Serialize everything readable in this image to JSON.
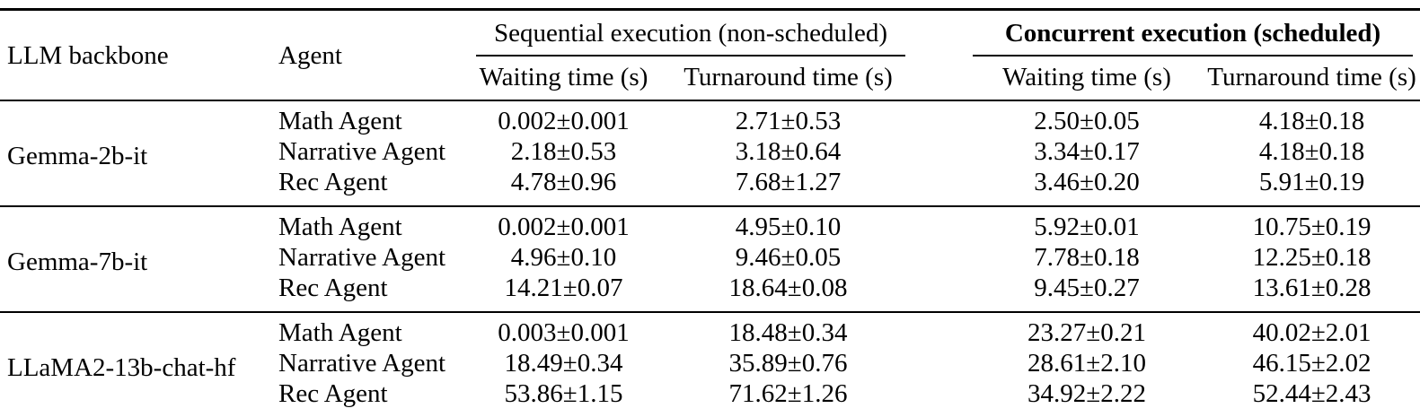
{
  "colors": {
    "background": "#ffffff",
    "text": "#000000",
    "rule": "#000000"
  },
  "table": {
    "headers": {
      "llm_backbone": "LLM backbone",
      "agent": "Agent",
      "sequential_group": "Sequential execution (non-scheduled)",
      "concurrent_group": "Concurrent execution (scheduled)"
    },
    "sub_columns": [
      "Waiting time (s)",
      "Turnaround time (s)"
    ],
    "groups": [
      {
        "backbone": "Gemma-2b-it",
        "rows": [
          {
            "agent": "Math Agent",
            "seq_wait": "0.002±0.001",
            "seq_turn": "2.71±0.53",
            "conc_wait": "2.50±0.05",
            "conc_turn": "4.18±0.18"
          },
          {
            "agent": "Narrative Agent",
            "seq_wait": "2.18±0.53",
            "seq_turn": "3.18±0.64",
            "conc_wait": "3.34±0.17",
            "conc_turn": "4.18±0.18"
          },
          {
            "agent": "Rec Agent",
            "seq_wait": "4.78±0.96",
            "seq_turn": "7.68±1.27",
            "conc_wait": "3.46±0.20",
            "conc_turn": "5.91±0.19"
          }
        ]
      },
      {
        "backbone": "Gemma-7b-it",
        "rows": [
          {
            "agent": "Math Agent",
            "seq_wait": "0.002±0.001",
            "seq_turn": "4.95±0.10",
            "conc_wait": "5.92±0.01",
            "conc_turn": "10.75±0.19"
          },
          {
            "agent": "Narrative Agent",
            "seq_wait": "4.96±0.10",
            "seq_turn": "9.46±0.05",
            "conc_wait": "7.78±0.18",
            "conc_turn": "12.25±0.18"
          },
          {
            "agent": "Rec Agent",
            "seq_wait": "14.21±0.07",
            "seq_turn": "18.64±0.08",
            "conc_wait": "9.45±0.27",
            "conc_turn": "13.61±0.28"
          }
        ]
      },
      {
        "backbone": "LLaMA2-13b-chat-hf",
        "rows": [
          {
            "agent": "Math Agent",
            "seq_wait": "0.003±0.001",
            "seq_turn": "18.48±0.34",
            "conc_wait": "23.27±0.21",
            "conc_turn": "40.02±2.01"
          },
          {
            "agent": "Narrative Agent",
            "seq_wait": "18.49±0.34",
            "seq_turn": "35.89±0.76",
            "conc_wait": "28.61±2.10",
            "conc_turn": "46.15±2.02"
          },
          {
            "agent": "Rec Agent",
            "seq_wait": "53.86±1.15",
            "seq_turn": "71.62±1.26",
            "conc_wait": "34.92±2.22",
            "conc_turn": "52.44±2.43"
          }
        ]
      }
    ]
  }
}
